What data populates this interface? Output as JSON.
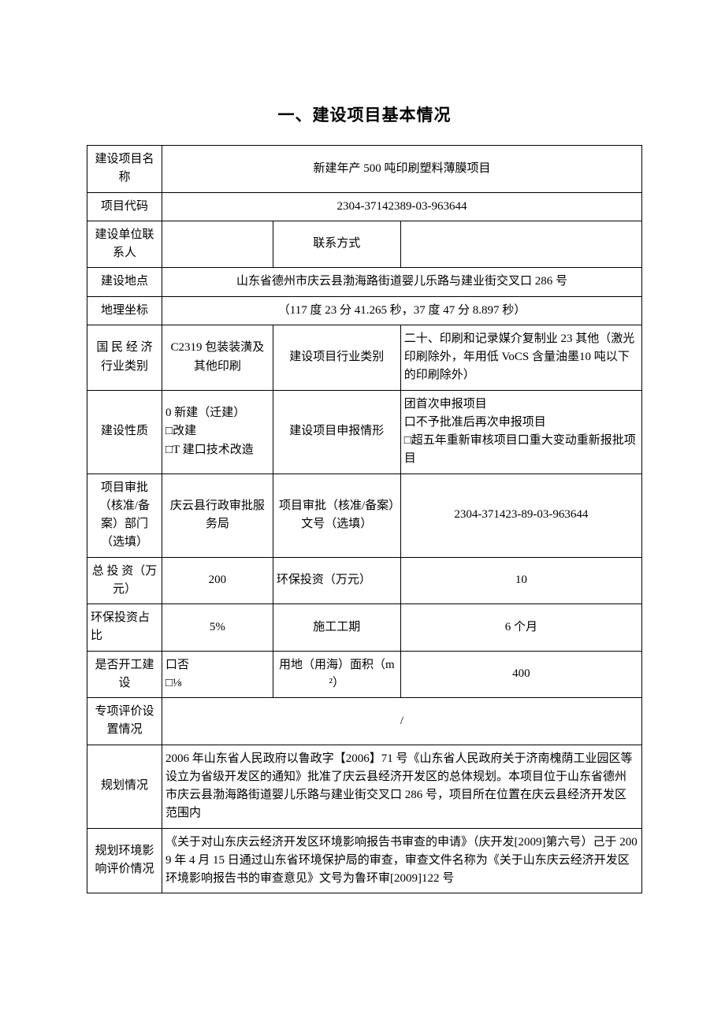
{
  "title": "一、建设项目基本情况",
  "rows": {
    "project_name": {
      "label": "建设项目名称",
      "value": "新建年产 500 吨印刷塑料薄膜项目"
    },
    "project_code": {
      "label": "项目代码",
      "value": "2304-37142389-03-963644"
    },
    "contact_person": {
      "label": "建设单位联系人",
      "value": ""
    },
    "contact_method": {
      "label": "联系方式",
      "value": ""
    },
    "location": {
      "label": "建设地点",
      "value": "山东省德州市庆云县渤海路街道婴儿乐路与建业街交叉口 286 号"
    },
    "coords": {
      "label": "地理坐标",
      "value": "（117 度 23 分 41.265 秒，37 度 47 分 8.897 秒）"
    },
    "industry": {
      "label": "国 民 经 济行业类别",
      "value": "C2319 包装装潢及其他印刷"
    },
    "project_industry": {
      "label": "建设项目行业类别",
      "value": "二十、印刷和记录媒介复制业 23 其他（激光印刷除外，年用低 VoCS 含量油墨10 吨以下的印刷除外）"
    },
    "nature": {
      "label": "建设性质",
      "value": "0 新建（迁建）\n□改建\n□T 建口技术改造"
    },
    "declare_form": {
      "label": "建设项目申报情形",
      "value": "团首次申报项目\n口不予批准后再次申报项目\n□超五年重新审核项目口重大变动重新报批项目"
    },
    "approval_dept": {
      "label": "项目审批（核准/备案）部门（选填）",
      "value": "庆云县行政审批服务局"
    },
    "approval_no": {
      "label": "项目审批（核准/备案）文号（选填）",
      "value": "2304-371423-89-03-963644"
    },
    "total_invest": {
      "label": "总 投 资（万元）",
      "value": "200"
    },
    "env_invest": {
      "label": "环保投资（万元）",
      "value": "10"
    },
    "env_ratio": {
      "label": "环保投资占比",
      "value": "5%"
    },
    "duration": {
      "label": "施工工期",
      "value": "6 个月"
    },
    "started": {
      "label": "是否开工建设",
      "value": "口否\n□⅛"
    },
    "land_area": {
      "label": "用地（用海）面积（m²）",
      "value": "400"
    },
    "special_eval": {
      "label": "专项评价设置情况",
      "value": "/"
    },
    "planning": {
      "label": "规划情况",
      "value": "2006 年山东省人民政府以鲁政字【2006】71 号《山东省人民政府关于济南槐荫工业园区等设立为省级开发区的通知》批准了庆云县经济开发区的总体规划。本项目位于山东省德州市庆云县渤海路街道婴儿乐路与建业街交叉口 286 号，项目所在位置在庆云县经济开发区范围内"
    },
    "planning_eia": {
      "label": "规划环境影响评价情况",
      "value": "《关于对山东庆云经济开发区环境影响报告书审查的申请》（庆开发[2009]第六号）己于 2009 年 4 月 15 日通过山东省环境保护局的审查，审查文件名称为《关于山东庆云经济开发区环境影响报告书的审查意见》文号为鲁环审[2009]122 号"
    }
  }
}
